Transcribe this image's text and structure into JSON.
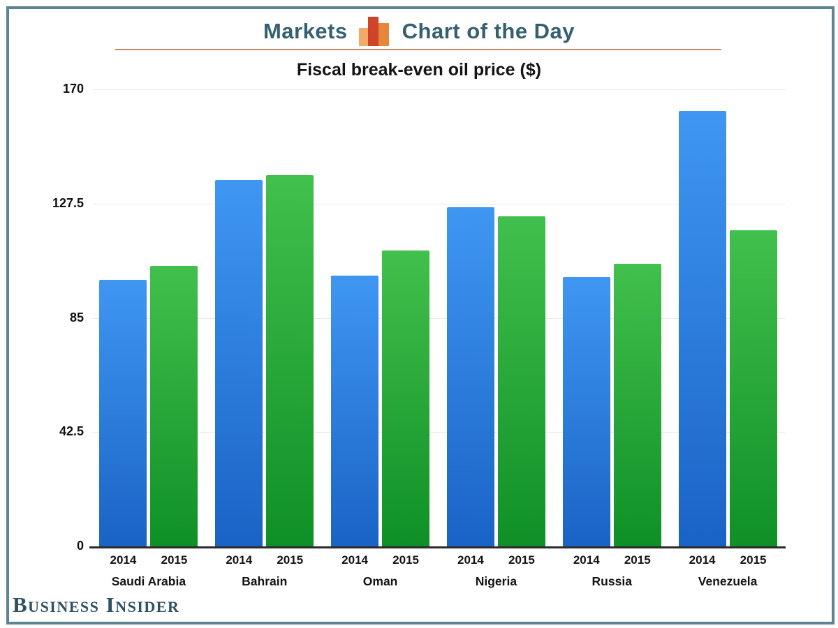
{
  "header": {
    "brand_left": "Markets",
    "brand_right": "Chart of the Day",
    "icon": "bar-chart-icon",
    "icon_colors": [
      "#f0a55f",
      "#cb3a1d",
      "#e6802f"
    ],
    "text_color": "#34606f",
    "accent_rule_color": "#d8835b"
  },
  "chart_data": {
    "type": "bar",
    "title": "Fiscal break-even oil price ($)",
    "categories": [
      "Saudi Arabia",
      "Bahrain",
      "Oman",
      "Nigeria",
      "Russia",
      "Venezuela"
    ],
    "series": [
      {
        "name": "2014",
        "color_top": "#3f97f2",
        "color_bottom": "#1a63c6",
        "values": [
          99.2,
          136.2,
          100.7,
          126.2,
          100.1,
          162
        ]
      },
      {
        "name": "2015",
        "color_top": "#42c04d",
        "color_bottom": "#0f9026",
        "values": [
          104.4,
          138.1,
          110,
          122.7,
          105.2,
          117.5
        ]
      }
    ],
    "y_ticks": [
      0,
      42.5,
      85,
      127.5,
      170
    ],
    "ylim": [
      0,
      170
    ],
    "grid": true,
    "legend_position": "none",
    "value_labels": "inside-top",
    "x_sub_labels": "series year under each bar, country name under each group"
  },
  "footer": {
    "logo_text": "Business Insider",
    "logo_color": "#2d5163"
  },
  "frame": {
    "border_color": "#5d8493"
  }
}
